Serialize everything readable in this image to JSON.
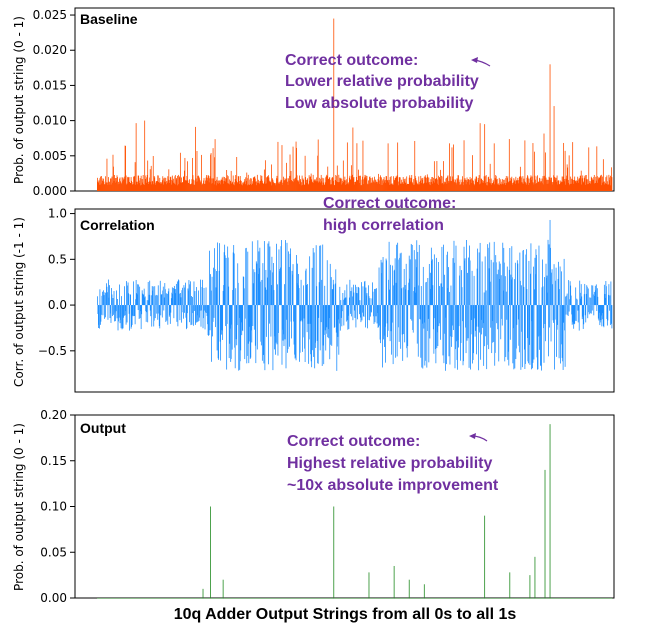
{
  "chart_data": [
    {
      "type": "bar",
      "title": "Baseline",
      "ylabel": "Prob. of output string (0 - 1)",
      "ylim": [
        0,
        0.026
      ],
      "yticks": [
        "0.000",
        "0.005",
        "0.010",
        "0.015",
        "0.020",
        "0.025"
      ],
      "color": "#ff4f00",
      "annotation": [
        "Correct outcome:",
        "Lower relative probability",
        "Low absolute probability"
      ],
      "annotation_color": "#7030a0",
      "n_bars": 1024,
      "peaks": [
        {
          "index": 470,
          "value": 0.0245
        },
        {
          "index": 900,
          "value": 0.018
        },
        {
          "index": 770,
          "value": 0.0095
        }
      ],
      "series_pattern": "low_baseline_with_spikes"
    },
    {
      "type": "bar",
      "title": "Correlation",
      "ylabel": "Corr. of output string (-1 - 1)",
      "ylim": [
        -0.95,
        1.05
      ],
      "yticks": [
        "−0.5",
        "0.0",
        "0.5",
        "1.0"
      ],
      "color": "#1e8fff",
      "annotation": [
        "Correct outcome:",
        "high correlation"
      ],
      "annotation_color": "#7030a0",
      "n_bars": 1024,
      "peaks": [
        {
          "index": 900,
          "value": 0.93
        }
      ],
      "series_pattern": "oscillating_between_-0.8_and_0.9"
    },
    {
      "type": "bar",
      "title": "Output",
      "ylabel": "Prob. of output string (0 - 1)",
      "ylim": [
        0,
        0.2
      ],
      "yticks": [
        "0.00",
        "0.05",
        "0.10",
        "0.15",
        "0.20"
      ],
      "xlabel": "10q Adder Output Strings from all 0s to all 1s",
      "color": "#228b22",
      "annotation": [
        "Correct outcome:",
        "Highest relative probability",
        "~10x absolute improvement"
      ],
      "annotation_color": "#7030a0",
      "n_bars": 1024,
      "peaks": [
        {
          "index": 900,
          "value": 0.19
        },
        {
          "index": 890,
          "value": 0.14
        },
        {
          "index": 770,
          "value": 0.09
        },
        {
          "index": 225,
          "value": 0.1
        },
        {
          "index": 470,
          "value": 0.1
        },
        {
          "index": 590,
          "value": 0.035
        },
        {
          "index": 870,
          "value": 0.045
        },
        {
          "index": 820,
          "value": 0.028
        },
        {
          "index": 860,
          "value": 0.025
        },
        {
          "index": 620,
          "value": 0.02
        },
        {
          "index": 650,
          "value": 0.015
        },
        {
          "index": 250,
          "value": 0.02
        },
        {
          "index": 540,
          "value": 0.028
        },
        {
          "index": 210,
          "value": 0.01
        }
      ],
      "series_pattern": "mostly_zero_with_spikes"
    }
  ]
}
